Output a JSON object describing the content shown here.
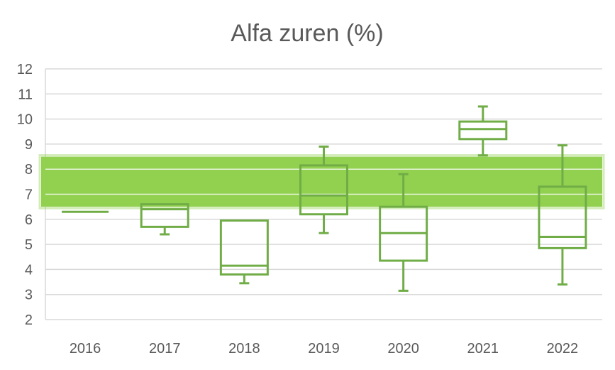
{
  "chart_data": {
    "type": "box",
    "title": "Alfa zuren (%)",
    "xlabel": "",
    "ylabel": "",
    "ylim": [
      2,
      12
    ],
    "yticks": [
      2,
      3,
      4,
      5,
      6,
      7,
      8,
      9,
      10,
      11,
      12
    ],
    "grid": true,
    "legend": "none",
    "colors": {
      "series": "#70ad47",
      "band": "#92d050",
      "grid": "#d9d9d9",
      "text": "#595959"
    },
    "reference_band": {
      "from": 6.5,
      "to": 8.5
    },
    "categories": [
      "2016",
      "2017",
      "2018",
      "2019",
      "2020",
      "2021",
      "2022"
    ],
    "boxes": [
      {
        "min": 6.3,
        "q1": 6.3,
        "median": 6.3,
        "q3": 6.3,
        "max": 6.3
      },
      {
        "min": 5.4,
        "q1": 5.7,
        "median": 6.4,
        "q3": 6.6,
        "max": 6.6
      },
      {
        "min": 3.45,
        "q1": 3.8,
        "median": 4.15,
        "q3": 5.95,
        "max": 5.95
      },
      {
        "min": 5.45,
        "q1": 6.2,
        "median": 6.95,
        "q3": 8.15,
        "max": 8.9
      },
      {
        "min": 3.15,
        "q1": 4.35,
        "median": 5.45,
        "q3": 6.5,
        "max": 7.8
      },
      {
        "min": 8.55,
        "q1": 9.2,
        "median": 9.6,
        "q3": 9.9,
        "max": 10.5
      },
      {
        "min": 3.4,
        "q1": 4.85,
        "median": 5.3,
        "q3": 7.3,
        "max": 8.95
      }
    ]
  }
}
